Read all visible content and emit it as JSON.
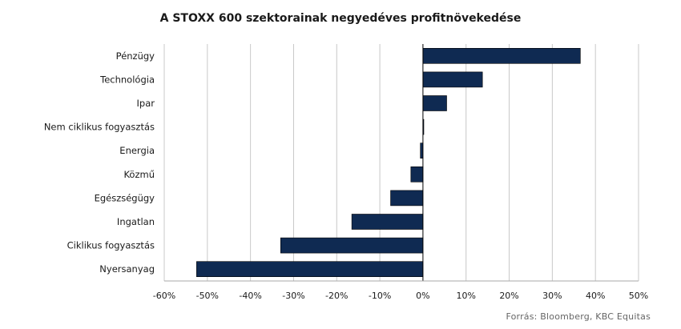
{
  "chart_data": {
    "type": "bar",
    "orientation": "horizontal",
    "title": "A STOXX 600 szektorainak negyedéves profitnövekedése",
    "source": "Forrás: Bloomberg,  KBC Equitas",
    "categories": [
      "Pénzügy",
      "Technológia",
      "Ipar",
      "Nem ciklikus fogyasztás",
      "Energia",
      "Közmű",
      "Egészségügy",
      "Ingatlan",
      "Ciklikus fogyasztás",
      "Nyersanyag"
    ],
    "values": [
      36.5,
      13.8,
      5.5,
      0.2,
      -0.6,
      -2.8,
      -7.5,
      -16.5,
      -33.0,
      -52.5
    ],
    "xlim": [
      -60,
      50
    ],
    "xticks": [
      -60,
      -50,
      -40,
      -30,
      -20,
      -10,
      0,
      10,
      20,
      30,
      40,
      50
    ],
    "xtick_labels": [
      "-60%",
      "-50%",
      "-40%",
      "-30%",
      "-20%",
      "-10%",
      "0%",
      "10%",
      "20%",
      "30%",
      "40%",
      "50%"
    ],
    "grid": true,
    "colors": {
      "bar": "#0f2a52",
      "grid": "#c8c8c8",
      "axis": "#000000"
    }
  }
}
